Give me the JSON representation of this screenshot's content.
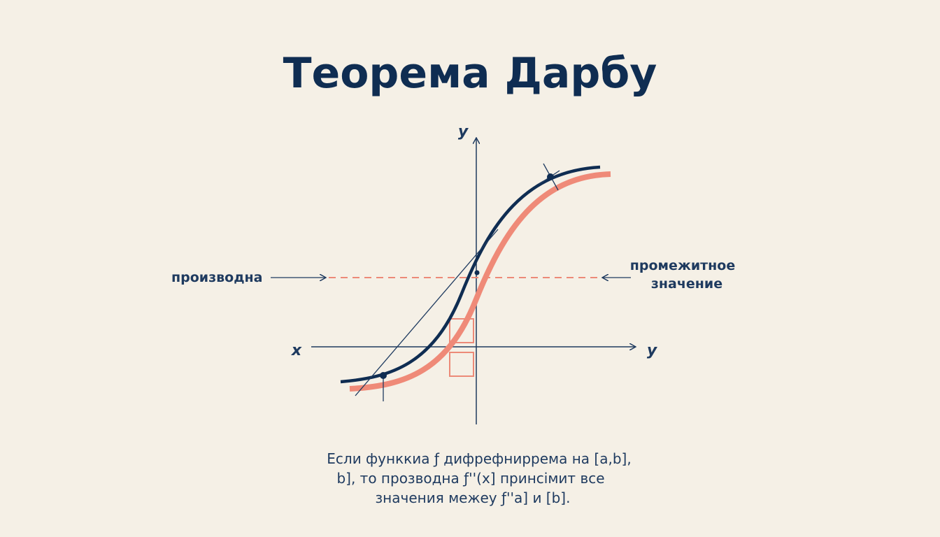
{
  "title": "Теорема Дарбу",
  "axes": {
    "y_top": "y",
    "x_left": "x",
    "y_right": "y"
  },
  "labels": {
    "left": "производна",
    "right": [
      "промежитное",
      "значение"
    ]
  },
  "caption": [
    "Если функкиа ƒ дифрефниррема на [a,b],",
    "b], то прозводна ƒ''(x] принсімит все",
    "значения межеу ƒ''a] и [b]."
  ]
}
